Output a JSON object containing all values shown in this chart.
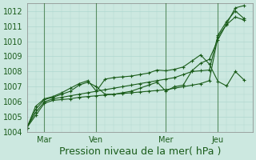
{
  "xlabel": "Pression niveau de la mer( hPa )",
  "bg_color": "#cce8e0",
  "grid_color": "#b0d8d0",
  "line_color": "#1a5c1a",
  "spine_color": "#888888",
  "ylim": [
    1004,
    1012.5
  ],
  "xlim": [
    0,
    26
  ],
  "x_ticks_pos": [
    2,
    8,
    16,
    22
  ],
  "x_tick_labels": [
    "Mar",
    "Ven",
    "Mer",
    "Jeu"
  ],
  "yticks": [
    1004,
    1005,
    1006,
    1007,
    1008,
    1009,
    1010,
    1011,
    1012
  ],
  "font_color": "#1a5c1a",
  "xlabel_fontsize": 9,
  "tick_fontsize": 7,
  "vline_x": [
    2,
    8,
    16,
    22
  ],
  "series": [
    {
      "x": [
        0,
        1,
        2,
        3,
        4,
        5,
        6,
        7,
        8,
        9,
        10,
        11,
        12,
        13,
        14,
        15,
        16,
        17,
        18,
        19,
        20,
        21,
        22,
        23,
        24,
        25
      ],
      "y": [
        1004.3,
        1005.1,
        1005.9,
        1006.1,
        1006.15,
        1006.2,
        1006.3,
        1006.35,
        1006.4,
        1006.45,
        1006.5,
        1006.55,
        1006.6,
        1006.65,
        1006.7,
        1006.75,
        1006.8,
        1006.9,
        1007.0,
        1007.1,
        1007.2,
        1007.4,
        1010.3,
        1011.1,
        1011.6,
        1011.4
      ]
    },
    {
      "x": [
        0,
        1,
        2,
        3,
        4,
        5,
        6,
        7,
        8,
        9,
        10,
        11,
        12,
        13,
        14,
        15,
        16,
        17,
        18,
        19,
        20,
        21,
        22,
        23,
        24,
        25
      ],
      "y": [
        1004.3,
        1005.3,
        1006.0,
        1006.2,
        1006.3,
        1006.4,
        1006.5,
        1006.6,
        1006.7,
        1006.8,
        1006.9,
        1007.0,
        1007.1,
        1007.2,
        1007.3,
        1007.4,
        1007.5,
        1007.6,
        1007.8,
        1008.0,
        1008.05,
        1008.1,
        1010.4,
        1011.3,
        1012.0,
        1011.5
      ]
    },
    {
      "x": [
        0,
        1,
        2,
        3,
        4,
        5,
        6,
        7,
        8,
        9,
        10,
        11,
        12,
        13,
        14,
        15,
        16,
        17,
        18,
        19,
        20,
        21,
        22,
        23,
        24,
        25
      ],
      "y": [
        1004.3,
        1005.5,
        1006.15,
        1006.3,
        1006.5,
        1006.7,
        1007.1,
        1007.3,
        1007.0,
        1006.5,
        1006.5,
        1006.6,
        1006.7,
        1006.9,
        1007.1,
        1007.3,
        1006.7,
        1007.0,
        1007.1,
        1008.05,
        1008.55,
        1008.8,
        1010.1,
        1011.15,
        1012.2,
        1012.35
      ]
    },
    {
      "x": [
        0,
        1,
        2,
        3,
        4,
        5,
        6,
        7,
        8,
        9,
        10,
        11,
        12,
        13,
        14,
        15,
        16,
        17,
        18,
        19,
        20,
        21,
        22,
        23,
        24,
        25
      ],
      "y": [
        1004.3,
        1005.7,
        1006.2,
        1006.35,
        1006.6,
        1006.9,
        1007.2,
        1007.4,
        1006.7,
        1007.5,
        1007.6,
        1007.65,
        1007.7,
        1007.8,
        1007.9,
        1008.1,
        1008.05,
        1008.15,
        1008.3,
        1008.7,
        1009.1,
        1008.5,
        1007.35,
        1007.05,
        1008.0,
        1007.45
      ]
    }
  ]
}
